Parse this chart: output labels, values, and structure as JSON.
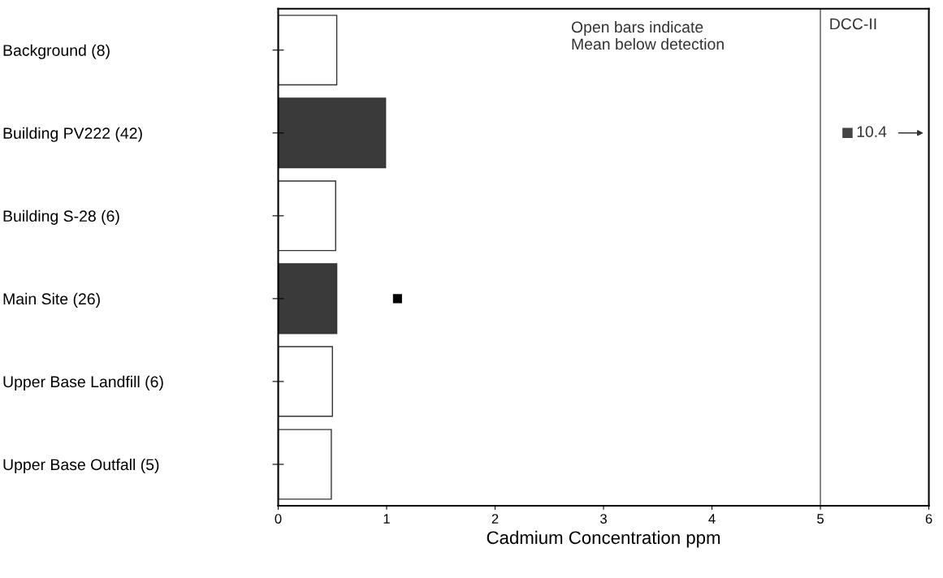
{
  "chart_data": {
    "type": "bar",
    "orientation": "horizontal",
    "xlabel": "Cadmium Concentration ppm",
    "categories": [
      "Background (8)",
      "Building PV222 (42)",
      "Building S-28 (6)",
      "Main Site (26)",
      "Upper Base Landfill (6)",
      "Upper Base Outfall (5)"
    ],
    "series": [
      {
        "type": "bar",
        "values": [
          0.54,
          0.99,
          0.53,
          0.54,
          0.5,
          0.49
        ],
        "colors": [
          "#ffffff",
          "#3a3a3a",
          "#ffffff",
          "#3a3a3a",
          "#ffffff",
          "#ffffff"
        ]
      },
      {
        "type": "scatter",
        "values": [
          null,
          null,
          null,
          1.1,
          null,
          null
        ],
        "color": "#000000",
        "marker": "square"
      }
    ],
    "xlim": [
      0,
      6
    ],
    "xticks": [
      0,
      1,
      2,
      3,
      4,
      5,
      6
    ],
    "grid": false,
    "legend": false,
    "ref_lines": [
      {
        "axis": "x",
        "value": 5,
        "label": "DCC-II",
        "color": "#555555"
      }
    ],
    "annotations": [
      "Open bars indicate\nMean below detection",
      {
        "text": "10.4",
        "x": 5.25,
        "y": "Building PV222 (42)"
      }
    ]
  }
}
